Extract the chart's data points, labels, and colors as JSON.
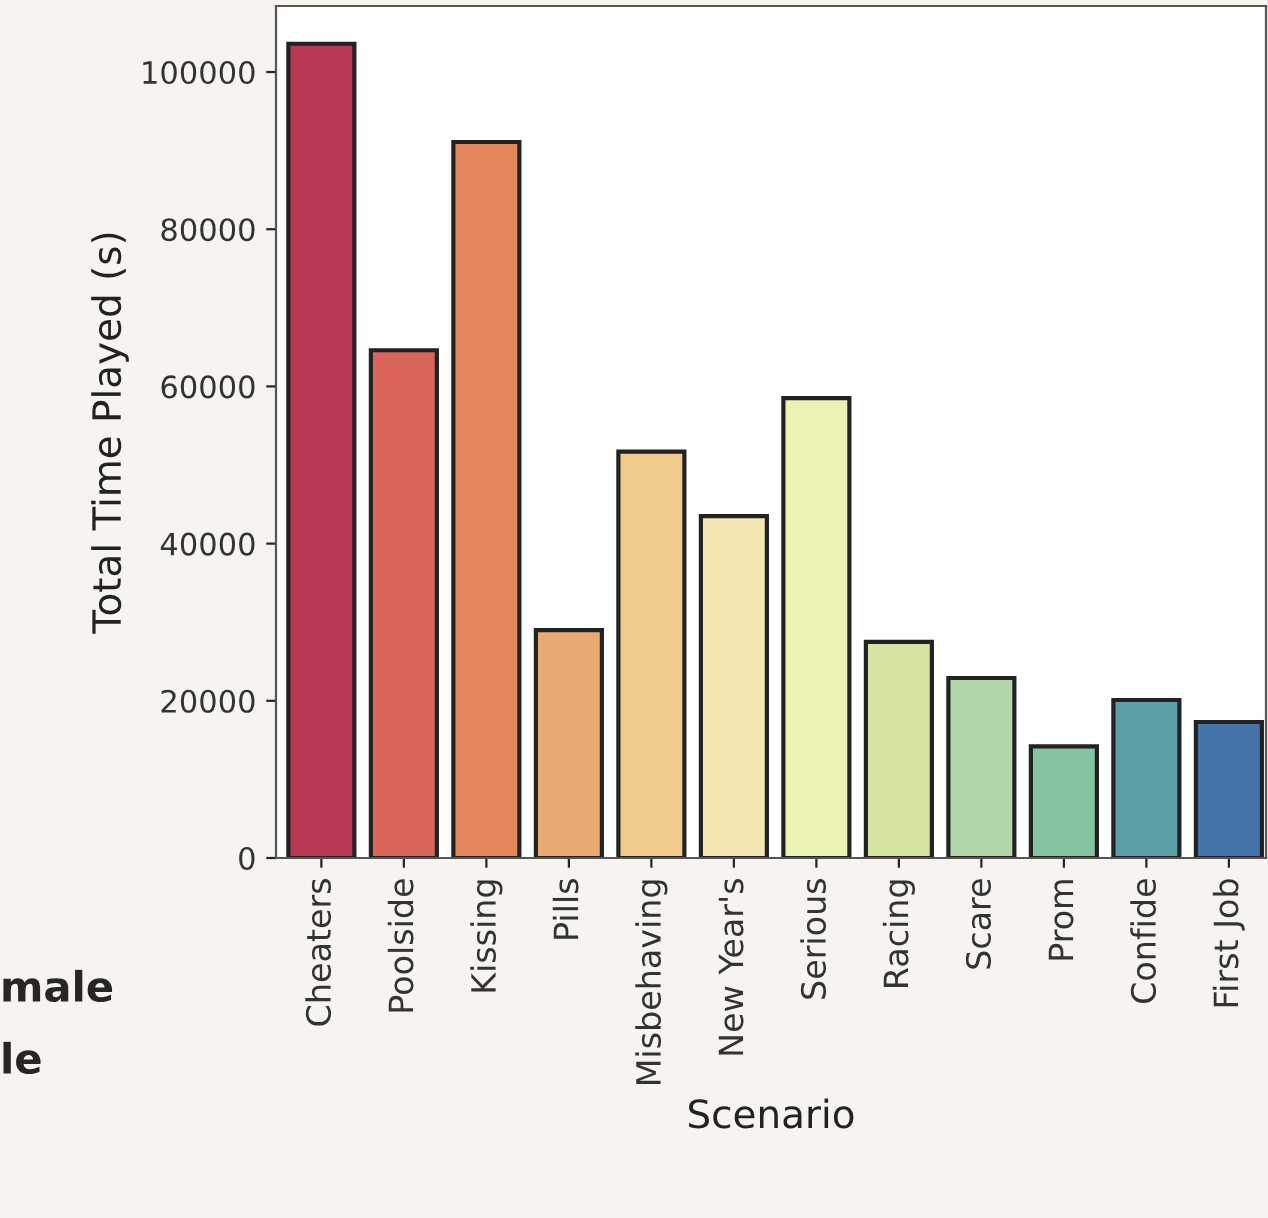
{
  "chart_data": {
    "type": "bar",
    "xlabel": "Scenario",
    "ylabel": "Total Time Played (s)",
    "categories": [
      "Cheaters",
      "Poolside",
      "Kissing",
      "Pills",
      "Misbehaving",
      "New Year's",
      "Serious",
      "Racing",
      "Scare",
      "Prom",
      "Confide",
      "First Job"
    ],
    "values": [
      103600,
      64600,
      91100,
      29000,
      51700,
      43500,
      58500,
      27500,
      22900,
      14200,
      20100,
      17300
    ],
    "colors": [
      "#b83a55",
      "#d8645a",
      "#e5875d",
      "#e9aa72",
      "#f0cb8c",
      "#f2e7b2",
      "#ecf1b4",
      "#d4e39f",
      "#b0d6a9",
      "#85c3a2",
      "#5a9fa5",
      "#4574aa"
    ],
    "ylim": [
      0,
      108400
    ],
    "yticks": [
      0,
      20000,
      40000,
      60000,
      80000,
      100000
    ],
    "grid": false,
    "annotations": [
      "male",
      "le"
    ]
  }
}
